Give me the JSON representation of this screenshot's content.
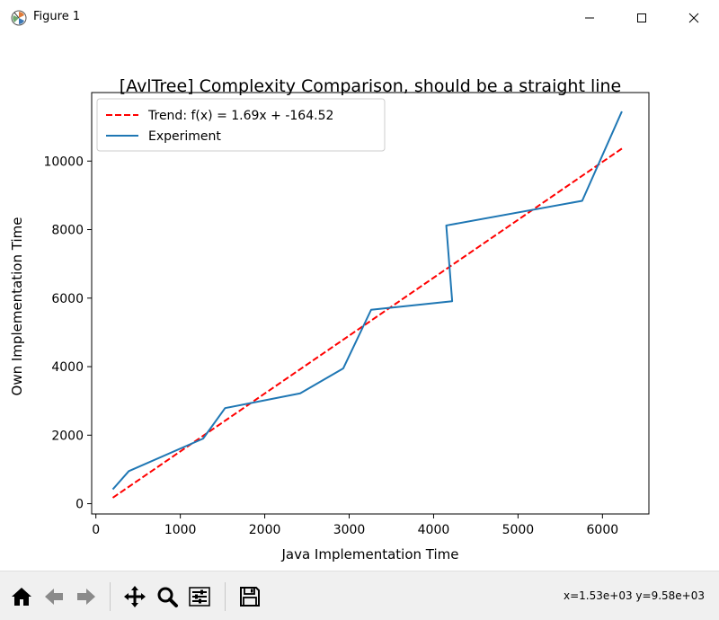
{
  "window": {
    "title": "Figure 1",
    "minimize_icon": "minimize-icon",
    "maximize_icon": "maximize-icon",
    "close_icon": "close-icon"
  },
  "toolbar": {
    "buttons": [
      {
        "name": "home-button",
        "icon": "home-icon"
      },
      {
        "name": "back-button",
        "icon": "back-arrow-icon"
      },
      {
        "name": "forward-button",
        "icon": "forward-arrow-icon"
      },
      {
        "name": "pan-button",
        "icon": "move-icon"
      },
      {
        "name": "zoom-button",
        "icon": "magnifier-icon"
      },
      {
        "name": "configure-button",
        "icon": "sliders-icon"
      },
      {
        "name": "save-button",
        "icon": "floppy-disk-icon"
      }
    ],
    "coordinates": "x=1.53e+03 y=9.58e+03"
  },
  "chart_data": {
    "type": "line",
    "title": "[AvlTree] Complexity Comparison, should be a straight line",
    "xlabel": "Java Implementation Time",
    "ylabel": "Own Implementation Time",
    "xlim": [
      -50,
      6550
    ],
    "ylim": [
      -300,
      12000
    ],
    "xticks": [
      0,
      1000,
      2000,
      3000,
      4000,
      5000,
      6000
    ],
    "yticks": [
      0,
      2000,
      4000,
      6000,
      8000,
      10000
    ],
    "grid": false,
    "legend": "upper-left",
    "series": [
      {
        "name": "Trend: f(x) = 1.69x + -164.52",
        "style": "dashed",
        "color": "#ff0000",
        "x": [
          200,
          6230
        ],
        "y": [
          173.48,
          10364.18
        ]
      },
      {
        "name": "Experiment",
        "style": "solid",
        "color": "#1f77b4",
        "x": [
          200,
          390,
          1270,
          1530,
          2420,
          2930,
          3260,
          4220,
          4150,
          5760,
          6230
        ],
        "y": [
          420,
          950,
          1900,
          2790,
          3220,
          3950,
          5660,
          5910,
          8120,
          8840,
          11450
        ]
      }
    ]
  }
}
